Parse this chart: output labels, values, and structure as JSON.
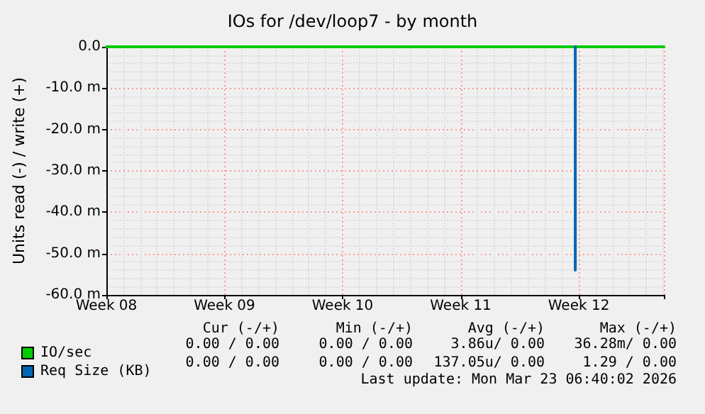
{
  "chart_data": {
    "type": "line",
    "title": "IOs for /dev/loop7 - by month",
    "ylabel": "Units read (-) / write (+)",
    "xlim": [
      "2026-02-16",
      "2026-03-21T01:00"
    ],
    "xticks": [
      {
        "value": "2026-02-16",
        "label": "Week 08"
      },
      {
        "value": "2026-02-23",
        "label": "Week 09"
      },
      {
        "value": "2026-03-02",
        "label": "Week 10"
      },
      {
        "value": "2026-03-09",
        "label": "Week 11"
      },
      {
        "value": "2026-03-16",
        "label": "Week 12"
      }
    ],
    "ylim": [
      -60,
      0
    ],
    "yticks": [
      {
        "value": -60,
        "label": "-60.0 m"
      },
      {
        "value": -50,
        "label": "-50.0 m"
      },
      {
        "value": -40,
        "label": "-40.0 m"
      },
      {
        "value": -30,
        "label": "-30.0 m"
      },
      {
        "value": -20,
        "label": "-20.0 m"
      },
      {
        "value": -10,
        "label": "-10.0 m"
      },
      {
        "value": 0,
        "label": "0.0"
      }
    ],
    "series": [
      {
        "name": "IO/sec",
        "color": "#00cc00",
        "x": [
          "2026-02-16",
          "2026-03-21T01:00"
        ],
        "values": [
          0,
          0
        ]
      },
      {
        "name": "Req Size (KB)",
        "color": "#0066b3",
        "x": [
          "2026-03-15T19:00",
          "2026-03-15T19:00"
        ],
        "values": [
          0,
          -54
        ]
      }
    ],
    "grid": true,
    "legend": "bottom left",
    "marker": "none",
    "line_style": "solid",
    "annotations": [
      "Cur (-/+)",
      "Min (-/+)",
      "Avg (-/+)",
      "Max (-/+)",
      "0.00 / 0.00",
      "0.00 / 0.00",
      "3.86u/ 0.00",
      "36.28m/ 0.00",
      "0.00 / 0.00",
      "0.00 / 0.00",
      "137.05u/ 0.00",
      "1.29 / 0.00",
      "Last update: Mon Mar 23 06:40:02 2026"
    ]
  }
}
